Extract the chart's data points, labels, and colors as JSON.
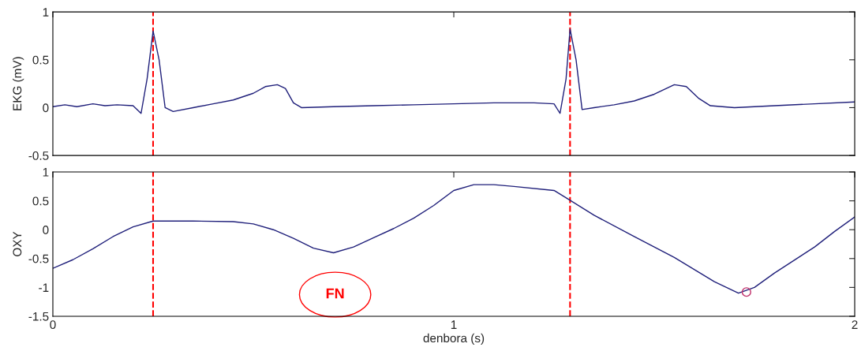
{
  "chart_data": [
    {
      "type": "line",
      "ylabel": "EKG (mV)",
      "xlim": [
        0,
        2
      ],
      "xticks": [
        0,
        1,
        2
      ],
      "ylim": [
        -0.5,
        1
      ],
      "yticks": [
        -0.5,
        0,
        0.5,
        1
      ],
      "tick_labels": "y",
      "grid": false,
      "line_style": "solid",
      "marker": "none",
      "series": [
        {
          "color": "#1f1f7a",
          "x": [
            0,
            0.03,
            0.06,
            0.1,
            0.13,
            0.16,
            0.2,
            0.22,
            0.235,
            0.25,
            0.265,
            0.28,
            0.3,
            0.35,
            0.4,
            0.45,
            0.5,
            0.53,
            0.56,
            0.58,
            0.6,
            0.62,
            0.7,
            0.8,
            0.9,
            1.0,
            1.1,
            1.2,
            1.25,
            1.265,
            1.28,
            1.29,
            1.305,
            1.32,
            1.35,
            1.4,
            1.45,
            1.5,
            1.55,
            1.58,
            1.61,
            1.64,
            1.7,
            1.8,
            1.9,
            2.0
          ],
          "values": [
            0.01,
            0.03,
            0.01,
            0.04,
            0.02,
            0.03,
            0.02,
            -0.06,
            0.3,
            0.8,
            0.5,
            0.0,
            -0.04,
            0.0,
            0.04,
            0.08,
            0.15,
            0.22,
            0.24,
            0.2,
            0.05,
            0.0,
            0.01,
            0.02,
            0.03,
            0.04,
            0.05,
            0.05,
            0.04,
            -0.06,
            0.3,
            0.82,
            0.5,
            -0.02,
            0.0,
            0.03,
            0.07,
            0.14,
            0.24,
            0.22,
            0.1,
            0.02,
            0.0,
            0.02,
            0.04,
            0.06
          ]
        }
      ],
      "ref_lines": [
        {
          "axis": "x",
          "value": 0.25,
          "color": "#ff0000",
          "line_style": "dashed"
        },
        {
          "axis": "x",
          "value": 1.29,
          "color": "#ff0000",
          "line_style": "dashed"
        }
      ]
    },
    {
      "type": "line",
      "ylabel": "OXY",
      "xlabel": "denbora (s)",
      "xlim": [
        0,
        2
      ],
      "xticks": [
        0,
        1,
        2
      ],
      "ylim": [
        -1.5,
        1
      ],
      "yticks": [
        -1.5,
        -1,
        -0.5,
        0,
        0.5,
        1
      ],
      "grid": false,
      "line_style": "solid",
      "marker": "none",
      "series": [
        {
          "color": "#1f1f7a",
          "x": [
            0,
            0.05,
            0.1,
            0.15,
            0.2,
            0.25,
            0.35,
            0.45,
            0.5,
            0.55,
            0.6,
            0.65,
            0.7,
            0.75,
            0.8,
            0.85,
            0.9,
            0.95,
            1.0,
            1.05,
            1.1,
            1.15,
            1.25,
            1.29,
            1.35,
            1.45,
            1.55,
            1.65,
            1.71,
            1.75,
            1.8,
            1.9,
            1.95,
            2.0
          ],
          "values": [
            -0.67,
            -0.52,
            -0.33,
            -0.12,
            0.05,
            0.15,
            0.15,
            0.14,
            0.1,
            0.0,
            -0.15,
            -0.32,
            -0.4,
            -0.3,
            -0.14,
            0.02,
            0.2,
            0.42,
            0.68,
            0.78,
            0.78,
            0.75,
            0.68,
            0.51,
            0.25,
            -0.12,
            -0.48,
            -0.9,
            -1.1,
            -1.0,
            -0.75,
            -0.3,
            -0.03,
            0.22
          ]
        },
        {
          "type": "scatter",
          "color": "#c0306a",
          "marker": "circle",
          "x": [
            1.73
          ],
          "values": [
            -1.08
          ]
        }
      ],
      "annotations": [
        "FN"
      ],
      "ref_lines": [
        {
          "axis": "x",
          "value": 0.25,
          "color": "#ff0000",
          "line_style": "dashed"
        },
        {
          "axis": "x",
          "value": 1.29,
          "color": "#ff0000",
          "line_style": "dashed"
        }
      ]
    }
  ]
}
